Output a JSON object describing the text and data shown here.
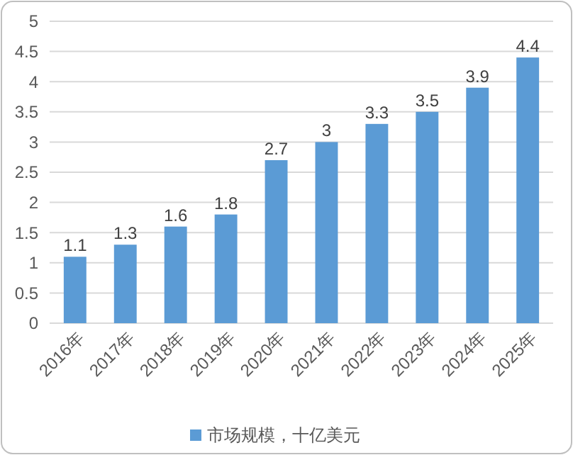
{
  "chart_data": {
    "type": "bar",
    "categories": [
      "2016年",
      "2017年",
      "2018年",
      "2019年",
      "2020年",
      "2021年",
      "2022年",
      "2023年",
      "2024年",
      "2025年"
    ],
    "series": [
      {
        "name": "市场规模，十亿美元",
        "color": "#5b9bd5",
        "values": [
          1.1,
          1.3,
          1.6,
          1.8,
          2.7,
          3,
          3.3,
          3.5,
          3.9,
          4.4
        ]
      }
    ],
    "ylim": [
      0,
      5
    ],
    "yticks": [
      0,
      0.5,
      1,
      1.5,
      2,
      2.5,
      3,
      3.5,
      4,
      4.5,
      5
    ],
    "grid": "y",
    "legend": "bottom",
    "data_labels": true
  }
}
